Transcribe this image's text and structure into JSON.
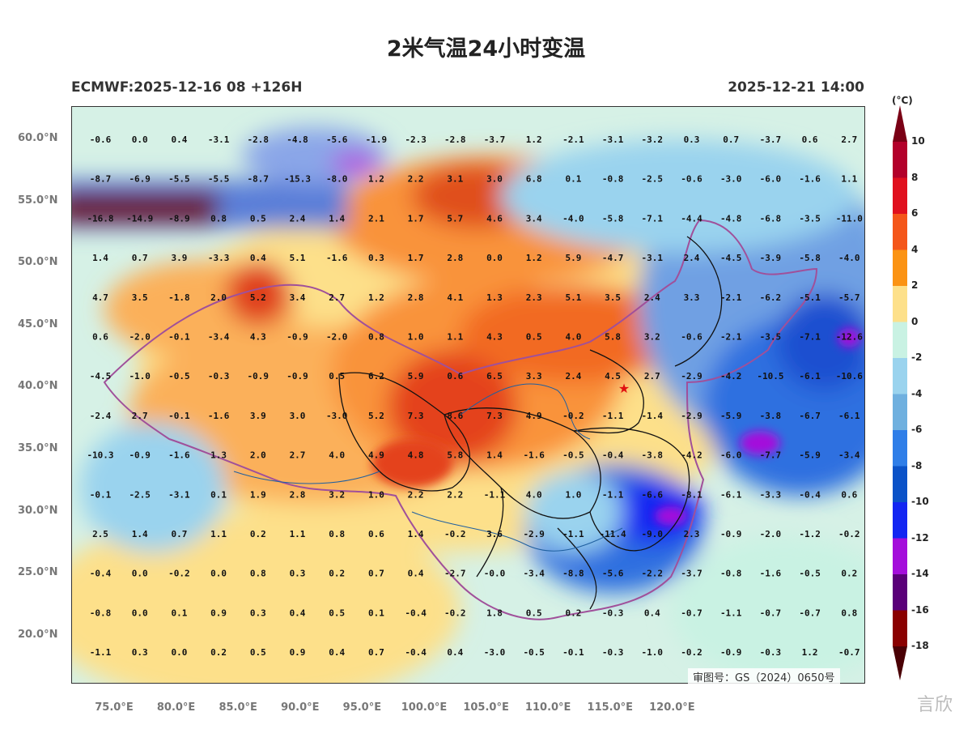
{
  "title": "2米气温24小时变温",
  "model_label": "ECMWF:2025-12-16 08 +126H",
  "valid_time": "2025-12-21 14:00",
  "unit": "(°C)",
  "approval": "审图号：GS（2024）0650号",
  "watermark": "言欣",
  "lat_labels": [
    "60.0°N",
    "55.0°N",
    "50.0°N",
    "45.0°N",
    "40.0°N",
    "35.0°N",
    "30.0°N",
    "25.0°N",
    "20.0°N"
  ],
  "lon_labels": [
    "75.0°E",
    "80.0°E",
    "85.0°E",
    "90.0°E",
    "95.0°E",
    "100.0°E",
    "105.0°E",
    "110.0°E",
    "115.0°E",
    "120.0°E"
  ],
  "colorbar": {
    "labels": [
      "10",
      "8",
      "6",
      "4",
      "2",
      "0",
      "-2",
      "-4",
      "-6",
      "-8",
      "-10",
      "-12",
      "-14",
      "-16",
      "-18"
    ],
    "colors": [
      "#b3002a",
      "#e0101e",
      "#f4561a",
      "#fb9313",
      "#fde08a",
      "#c9f2e3",
      "#9ad3ee",
      "#6fb0df",
      "#2f7ee8",
      "#0b52c8",
      "#1326f2",
      "#a40edb",
      "#5a0079",
      "#8a0000"
    ],
    "top_cap": "#7a0015",
    "bottom_cap": "#4a0005"
  },
  "grid_values": [
    [
      "-0.6",
      "0.0",
      "0.4",
      "-3.1",
      "-2.8",
      "-4.8",
      "-5.6",
      "-1.9",
      "-2.3",
      "-2.8",
      "-3.7",
      "1.2",
      "-2.1",
      "-3.1",
      "-3.2",
      "0.3",
      "0.7",
      "-3.7",
      "0.6",
      "2.7"
    ],
    [
      "-8.7",
      "-6.9",
      "-5.5",
      "-5.5",
      "-8.7",
      "-15.3",
      "-8.0",
      "1.2",
      "2.2",
      "3.1",
      "3.0",
      "6.8",
      "0.1",
      "-0.8",
      "-2.5",
      "-0.6",
      "-3.0",
      "-6.0",
      "-1.6",
      "1.1"
    ],
    [
      "-16.8",
      "-14.9",
      "-8.9",
      "0.8",
      "0.5",
      "2.4",
      "1.4",
      "2.1",
      "1.7",
      "5.7",
      "4.6",
      "3.4",
      "-4.0",
      "-5.8",
      "-7.1",
      "-4.4",
      "-4.8",
      "-6.8",
      "-3.5",
      "-11.0"
    ],
    [
      "1.4",
      "0.7",
      "3.9",
      "-3.3",
      "0.4",
      "5.1",
      "-1.6",
      "0.3",
      "1.7",
      "2.8",
      "0.0",
      "1.2",
      "5.9",
      "-4.7",
      "-3.1",
      "2.4",
      "-4.5",
      "-3.9",
      "-5.8",
      "-4.0"
    ],
    [
      "4.7",
      "3.5",
      "-1.8",
      "2.0",
      "5.2",
      "3.4",
      "2.7",
      "1.2",
      "2.8",
      "4.1",
      "1.3",
      "2.3",
      "5.1",
      "3.5",
      "2.4",
      "3.3",
      "-2.1",
      "-6.2",
      "-5.1",
      "-5.7"
    ],
    [
      "0.6",
      "-2.0",
      "-0.1",
      "-3.4",
      "4.3",
      "-0.9",
      "-2.0",
      "0.8",
      "1.0",
      "1.1",
      "4.3",
      "0.5",
      "4.0",
      "5.8",
      "3.2",
      "-0.6",
      "-2.1",
      "-3.5",
      "-7.1",
      "-12.6"
    ],
    [
      "-4.5",
      "-1.0",
      "-0.5",
      "-0.3",
      "-0.9",
      "-0.9",
      "0.5",
      "6.2",
      "5.9",
      "0.6",
      "6.5",
      "3.3",
      "2.4",
      "4.5",
      "2.7",
      "-2.9",
      "-4.2",
      "-10.5",
      "-6.1",
      "-10.6"
    ],
    [
      "-2.4",
      "2.7",
      "-0.1",
      "-1.6",
      "3.9",
      "3.0",
      "-3.0",
      "5.2",
      "7.3",
      "8.6",
      "7.3",
      "4.9",
      "-0.2",
      "-1.1",
      "-1.4",
      "-2.9",
      "-5.9",
      "-3.8",
      "-6.7",
      "-6.1"
    ],
    [
      "-10.3",
      "-0.9",
      "-1.6",
      "1.3",
      "2.0",
      "2.7",
      "4.0",
      "4.9",
      "4.8",
      "5.8",
      "1.4",
      "-1.6",
      "-0.5",
      "-0.4",
      "-3.8",
      "-4.2",
      "-6.0",
      "-7.7",
      "-5.9",
      "-3.4"
    ],
    [
      "-0.1",
      "-2.5",
      "-3.1",
      "0.1",
      "1.9",
      "2.8",
      "3.2",
      "1.0",
      "2.2",
      "2.2",
      "-1.1",
      "4.0",
      "1.0",
      "-1.1",
      "-6.6",
      "-8.1",
      "-6.1",
      "-3.3",
      "-0.4",
      "0.6"
    ],
    [
      "2.5",
      "1.4",
      "0.7",
      "1.1",
      "0.2",
      "1.1",
      "0.8",
      "0.6",
      "1.4",
      "-0.2",
      "3.6",
      "-2.9",
      "-1.1",
      "-11.4",
      "-9.0",
      "2.3",
      "-0.9",
      "-2.0",
      "-1.2",
      "-0.2"
    ],
    [
      "-0.4",
      "0.0",
      "-0.2",
      "0.0",
      "0.8",
      "0.3",
      "0.2",
      "0.7",
      "0.4",
      "-2.7",
      "-0.0",
      "-3.4",
      "-8.8",
      "-5.6",
      "-2.2",
      "-3.7",
      "-0.8",
      "-1.6",
      "-0.5",
      "0.2"
    ],
    [
      "-0.8",
      "0.0",
      "0.1",
      "0.9",
      "0.3",
      "0.4",
      "0.5",
      "0.1",
      "-0.4",
      "-0.2",
      "1.8",
      "0.5",
      "0.2",
      "-0.3",
      "0.4",
      "-0.7",
      "-1.1",
      "-0.7",
      "-0.7",
      "0.8"
    ],
    [
      "-1.1",
      "0.3",
      "0.0",
      "0.2",
      "0.5",
      "0.9",
      "0.4",
      "0.7",
      "-0.4",
      "0.4",
      "-3.0",
      "-0.5",
      "-0.1",
      "-0.3",
      "-1.0",
      "-0.2",
      "-0.9",
      "-0.3",
      "1.2",
      "-0.7"
    ]
  ]
}
